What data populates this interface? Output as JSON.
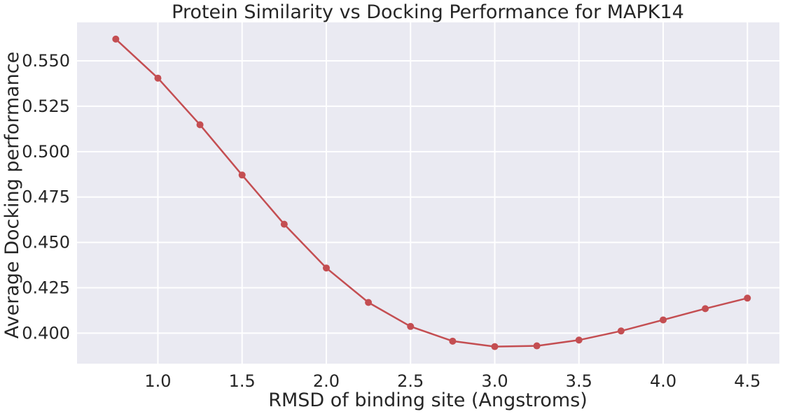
{
  "chart_data": {
    "type": "line",
    "title": "Protein Similarity vs Docking Performance for MAPK14",
    "xlabel": "RMSD of binding site (Angstroms)",
    "ylabel": "Average Docking performance",
    "xlim": [
      0.52,
      4.69
    ],
    "ylim": [
      0.3832,
      0.5712
    ],
    "xticks": [
      1.0,
      1.5,
      2.0,
      2.5,
      3.0,
      3.5,
      4.0,
      4.5
    ],
    "xtick_labels": [
      "1.0",
      "1.5",
      "2.0",
      "2.5",
      "3.0",
      "3.5",
      "4.0",
      "4.5"
    ],
    "yticks": [
      0.4,
      0.425,
      0.45,
      0.475,
      0.5,
      0.525,
      0.55
    ],
    "ytick_labels": [
      "0.400",
      "0.425",
      "0.450",
      "0.475",
      "0.500",
      "0.525",
      "0.550"
    ],
    "grid": true,
    "background": "#eaeaf2",
    "grid_color": "#ffffff",
    "line_color": "#c44e52",
    "series": [
      {
        "x": [
          0.75,
          1.0,
          1.25,
          1.5,
          1.75,
          2.0,
          2.25,
          2.5,
          2.75,
          3.0,
          3.25,
          3.5,
          3.75,
          4.0,
          4.25,
          4.5
        ],
        "y": [
          0.562,
          0.5405,
          0.5148,
          0.4871,
          0.46,
          0.4359,
          0.4169,
          0.4037,
          0.3956,
          0.3926,
          0.393,
          0.3962,
          0.4012,
          0.4073,
          0.4135,
          0.4193
        ]
      }
    ]
  }
}
